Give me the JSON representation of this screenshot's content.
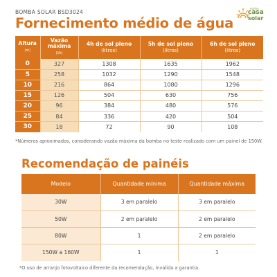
{
  "header": {
    "product_code": "BOMBA SOLAR BSD3024",
    "title": "Fornecimento médio de água"
  },
  "logo": {
    "small_text": "minha",
    "casa": "casa",
    "solar": "solar",
    "sun_color": "#e8a23a",
    "text_color": "#6a8f3a"
  },
  "supply_table": {
    "columns": [
      {
        "label": "Altura",
        "unit": "(m)"
      },
      {
        "label": "Vazão máxima",
        "unit": "(l/h)"
      },
      {
        "label": "4h de sol pleno",
        "unit": "(litros)"
      },
      {
        "label": "5h de sol pleno",
        "unit": "(litros)"
      },
      {
        "label": "6h de sol pleno",
        "unit": "(litros)"
      }
    ],
    "rows": [
      [
        "0",
        "327",
        "1308",
        "1635",
        "1962"
      ],
      [
        "5",
        "258",
        "1032",
        "1290",
        "1548"
      ],
      [
        "10",
        "216",
        "864",
        "1080",
        "1296"
      ],
      [
        "15",
        "126",
        "504",
        "630",
        "756"
      ],
      [
        "20",
        "96",
        "384",
        "480",
        "576"
      ],
      [
        "25",
        "84",
        "336",
        "420",
        "504"
      ],
      [
        "30",
        "18",
        "72",
        "90",
        "108"
      ]
    ]
  },
  "note1": "*Números aproximados, considerando vazão máxima da bomba no teste realizado com um painel de 150W.",
  "panels_section": {
    "title": "Recomendação de painéis",
    "columns": [
      "Modelo",
      "Quantidade mínima",
      "Quantidade máxima"
    ],
    "rows": [
      [
        "30W",
        "3 em paralelo",
        "3 em paralelo"
      ],
      [
        "50W",
        "2 em paralelo",
        "2 em paralelo"
      ],
      [
        "80W",
        "1",
        "2 em paralelo"
      ],
      [
        "150W a 160W",
        "1",
        "1"
      ]
    ]
  },
  "note2": "*O uso de arranjo fotovoltaico diferente da recomendação, invalida a garantia.",
  "colors": {
    "accent": "#d9751f",
    "light_accent": "#f6ddb7"
  }
}
